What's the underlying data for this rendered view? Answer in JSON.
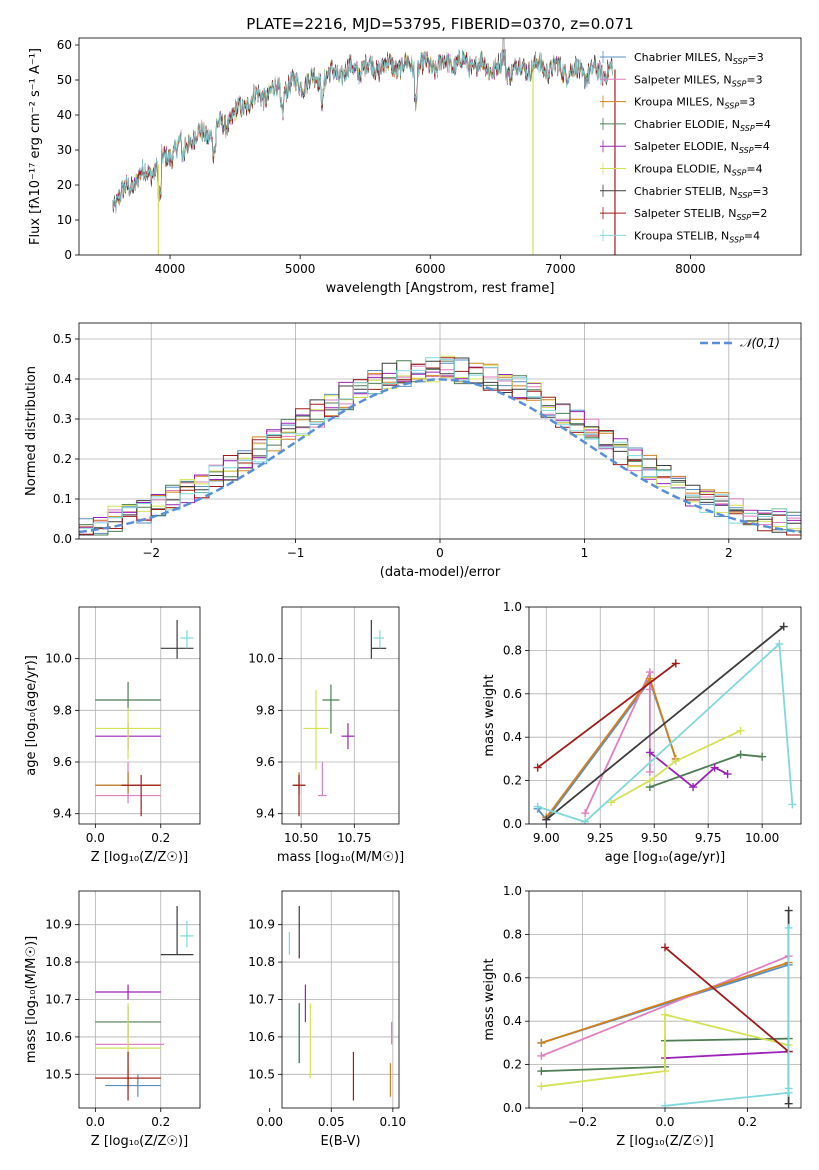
{
  "figure_title": "PLATE=2216, MJD=53795, FIBERID=0370, z=0.071",
  "models": [
    {
      "name": "Chabrier MILES",
      "nssp": "3",
      "color": "#5a8fbf"
    },
    {
      "name": "Salpeter MILES",
      "nssp": "3",
      "color": "#e07fbf"
    },
    {
      "name": "Kroupa MILES",
      "nssp": "3",
      "color": "#d2801e"
    },
    {
      "name": "Chabrier ELODIE",
      "nssp": "4",
      "color": "#4e7d55"
    },
    {
      "name": "Salpeter ELODIE",
      "nssp": "4",
      "color": "#9a22b8"
    },
    {
      "name": "Kroupa ELODIE",
      "nssp": "4",
      "color": "#d4e157"
    },
    {
      "name": "Chabrier STELIB",
      "nssp": "3",
      "color": "#3c3c3c"
    },
    {
      "name": "Salpeter STELIB",
      "nssp": "2",
      "color": "#a01c1c"
    },
    {
      "name": "Kroupa STELIB",
      "nssp": "4",
      "color": "#80d8dc"
    }
  ],
  "chart_data": [
    {
      "id": "spectrum",
      "type": "line",
      "xlabel": "wavelength [Angstrom, rest frame]",
      "ylabel": "Flux [fλ10⁻¹⁷ erg cm⁻² s⁻¹ A⁻¹]",
      "xlim": [
        3300,
        8850
      ],
      "ylim": [
        0,
        62
      ],
      "xticks": [
        4000,
        5000,
        6000,
        7000,
        8000
      ],
      "yticks": [
        0,
        10,
        20,
        30,
        40,
        50,
        60
      ],
      "legend_suffix": "N",
      "legend_sub": "SSP",
      "legend_placement": "upper-right",
      "continuum": {
        "x": [
          3560,
          3650,
          3750,
          3850,
          3950,
          4000,
          4100,
          4200,
          4300,
          4400,
          4500,
          4600,
          4800,
          5000,
          5200,
          5400,
          5600,
          5800,
          6000,
          6200,
          6400,
          6600,
          6800,
          7000,
          7200,
          7400
        ],
        "y": [
          15,
          18,
          22,
          24,
          27,
          29,
          32,
          34,
          35,
          37,
          40,
          44,
          47,
          49,
          51,
          53,
          54,
          54,
          54,
          55,
          54,
          53,
          54,
          53,
          52,
          53
        ]
      },
      "notches": [
        [
          3920,
          10
        ],
        [
          4100,
          4
        ],
        [
          4340,
          6
        ],
        [
          4860,
          5
        ],
        [
          5170,
          5
        ],
        [
          5890,
          8
        ],
        [
          6563,
          -3
        ]
      ],
      "dropouts": [
        {
          "x": 3910,
          "model": 5
        },
        {
          "x": 6790,
          "model": 5
        },
        {
          "x": 7420,
          "model": 7
        }
      ],
      "grid": false
    },
    {
      "id": "residuals",
      "type": "histogram",
      "xlabel": "(data-model)/error",
      "ylabel": "Normed distribution",
      "xlim": [
        -2.5,
        2.5
      ],
      "ylim": [
        0,
        0.54
      ],
      "xticks": [
        -2,
        -1,
        0,
        1,
        2
      ],
      "yticks": [
        0.0,
        0.1,
        0.2,
        0.3,
        0.4,
        0.5
      ],
      "bin_width": 0.1,
      "reference_label": "𝒩(0,1)",
      "reference_color": "#5a8fd6",
      "grid": true
    },
    {
      "id": "age-vs-Z",
      "type": "errorbar",
      "xlabel": "Z [log₁₀(Z/Z☉)]",
      "ylabel": "age  [log₁₀(age/yr)]",
      "xlim": [
        -0.05,
        0.32
      ],
      "ylim": [
        9.36,
        10.2
      ],
      "xticks": [
        0.0,
        0.2
      ],
      "yticks": [
        9.4,
        9.6,
        9.8,
        10.0
      ],
      "grid": true,
      "points": [
        {
          "m": 0,
          "x": 0.1,
          "y": 9.51,
          "ex": [
            0.1,
            0.1
          ],
          "ey": [
            0.05,
            0.05
          ]
        },
        {
          "m": 1,
          "x": 0.1,
          "y": 9.47,
          "ex": [
            0.1,
            0.1
          ],
          "ey": [
            0.03,
            0.13
          ]
        },
        {
          "m": 2,
          "x": 0.1,
          "y": 9.51,
          "ex": [
            0.1,
            0.1
          ],
          "ey": [
            0.03,
            0.05
          ]
        },
        {
          "m": 3,
          "x": 0.1,
          "y": 9.84,
          "ex": [
            0.1,
            0.1
          ],
          "ey": [
            0.04,
            0.07
          ]
        },
        {
          "m": 4,
          "x": 0.1,
          "y": 9.7,
          "ex": [
            0.1,
            0.1
          ],
          "ey": [
            0.05,
            0.05
          ]
        },
        {
          "m": 5,
          "x": 0.1,
          "y": 9.73,
          "ex": [
            0.1,
            0.1
          ],
          "ey": [
            0.12,
            0.08
          ]
        },
        {
          "m": 6,
          "x": 0.25,
          "y": 10.04,
          "ex": [
            0.05,
            0.05
          ],
          "ey": [
            0.04,
            0.11
          ]
        },
        {
          "m": 7,
          "x": 0.14,
          "y": 9.51,
          "ex": [
            0.06,
            0.06
          ],
          "ey": [
            0.12,
            0.04
          ]
        },
        {
          "m": 8,
          "x": 0.28,
          "y": 10.08,
          "ex": [
            0.02,
            0.02
          ],
          "ey": [
            0.04,
            0.03
          ]
        }
      ]
    },
    {
      "id": "age-vs-mass",
      "type": "errorbar",
      "xlabel": "mass [log₁₀(M/M☉)]",
      "ylabel": "",
      "xlim": [
        10.41,
        10.96
      ],
      "ylim": [
        9.36,
        10.2
      ],
      "xticks": [
        10.5,
        10.75
      ],
      "yticks": [
        9.4,
        9.6,
        9.8,
        10.0
      ],
      "grid": true,
      "points": [
        {
          "m": 0,
          "x": 10.49,
          "y": 9.51,
          "ex": [
            0.03,
            0.03
          ],
          "ey": [
            0.04,
            0.05
          ]
        },
        {
          "m": 1,
          "x": 10.6,
          "y": 9.47,
          "ex": [
            0.02,
            0.02
          ],
          "ey": [
            0.0,
            0.13
          ]
        },
        {
          "m": 2,
          "x": 10.49,
          "y": 9.51,
          "ex": [
            0.03,
            0.03
          ],
          "ey": [
            0.03,
            0.05
          ]
        },
        {
          "m": 3,
          "x": 10.64,
          "y": 9.84,
          "ex": [
            0.04,
            0.04
          ],
          "ey": [
            0.13,
            0.06
          ]
        },
        {
          "m": 4,
          "x": 10.72,
          "y": 9.7,
          "ex": [
            0.03,
            0.03
          ],
          "ey": [
            0.05,
            0.05
          ]
        },
        {
          "m": 5,
          "x": 10.57,
          "y": 9.73,
          "ex": [
            0.06,
            0.06
          ],
          "ey": [
            0.16,
            0.15
          ]
        },
        {
          "m": 6,
          "x": 10.83,
          "y": 10.04,
          "ex": [
            0.0,
            0.07
          ],
          "ey": [
            0.04,
            0.11
          ]
        },
        {
          "m": 7,
          "x": 10.49,
          "y": 9.51,
          "ex": [
            0.03,
            0.03
          ],
          "ey": [
            0.12,
            0.04
          ]
        },
        {
          "m": 8,
          "x": 10.87,
          "y": 10.08,
          "ex": [
            0.03,
            0.02
          ],
          "ey": [
            0.04,
            0.03
          ]
        }
      ]
    },
    {
      "id": "weight-vs-age",
      "type": "line",
      "xlabel": "age  [log₁₀(age/yr)]",
      "ylabel": "mass weight",
      "xlim": [
        8.92,
        10.18
      ],
      "ylim": [
        0,
        1
      ],
      "xticks": [
        9.0,
        9.25,
        9.5,
        9.75,
        10.0
      ],
      "yticks": [
        0.0,
        0.2,
        0.4,
        0.6,
        0.8,
        1.0
      ],
      "grid": true,
      "series": [
        {
          "m": 0,
          "x": [
            8.96,
            9.0,
            9.48,
            9.6
          ],
          "y": [
            0.07,
            0.02,
            0.66,
            0.3
          ]
        },
        {
          "m": 1,
          "x": [
            9.18,
            9.48,
            9.48,
            9.48
          ],
          "y": [
            0.05,
            0.7,
            0.62,
            0.24
          ]
        },
        {
          "m": 2,
          "x": [
            9.0,
            9.48,
            9.6
          ],
          "y": [
            0.03,
            0.67,
            0.3
          ]
        },
        {
          "m": 3,
          "x": [
            9.48,
            9.9,
            10.0
          ],
          "y": [
            0.17,
            0.32,
            0.31
          ]
        },
        {
          "m": 4,
          "x": [
            9.48,
            9.68,
            9.78,
            9.84
          ],
          "y": [
            0.33,
            0.17,
            0.26,
            0.23
          ]
        },
        {
          "m": 5,
          "x": [
            9.3,
            9.48,
            9.6,
            9.9
          ],
          "y": [
            0.1,
            0.2,
            0.29,
            0.43
          ]
        },
        {
          "m": 6,
          "x": [
            9.0,
            10.1
          ],
          "y": [
            0.02,
            0.91
          ]
        },
        {
          "m": 7,
          "x": [
            8.96,
            9.6
          ],
          "y": [
            0.26,
            0.74
          ]
        },
        {
          "m": 8,
          "x": [
            8.96,
            9.18,
            10.08,
            10.14
          ],
          "y": [
            0.08,
            0.01,
            0.83,
            0.09
          ]
        }
      ]
    },
    {
      "id": "mass-vs-Z",
      "type": "errorbar",
      "xlabel": "Z [log₁₀(Z/Z☉)]",
      "ylabel": "mass [log₁₀(M/M☉)]",
      "xlim": [
        -0.05,
        0.32
      ],
      "ylim": [
        10.41,
        10.99
      ],
      "xticks": [
        0.0,
        0.2
      ],
      "yticks": [
        10.5,
        10.6,
        10.7,
        10.8,
        10.9
      ],
      "grid": true,
      "points": [
        {
          "m": 0,
          "x": 0.13,
          "y": 10.47,
          "ex": [
            0.1,
            0.07
          ],
          "ey": [
            0.03,
            0.03
          ]
        },
        {
          "m": 1,
          "x": 0.1,
          "y": 10.58,
          "ex": [
            0.1,
            0.11
          ],
          "ey": [
            0.02,
            0.05
          ]
        },
        {
          "m": 2,
          "x": 0.1,
          "y": 10.49,
          "ex": [
            0.1,
            0.1
          ],
          "ey": [
            0.03,
            0.03
          ]
        },
        {
          "m": 3,
          "x": 0.1,
          "y": 10.64,
          "ex": [
            0.1,
            0.1
          ],
          "ey": [
            0.04,
            0.04
          ]
        },
        {
          "m": 4,
          "x": 0.1,
          "y": 10.72,
          "ex": [
            0.1,
            0.1
          ],
          "ey": [
            0.02,
            0.02
          ]
        },
        {
          "m": 5,
          "x": 0.1,
          "y": 10.57,
          "ex": [
            0.1,
            0.1
          ],
          "ey": [
            0.09,
            0.12
          ]
        },
        {
          "m": 6,
          "x": 0.25,
          "y": 10.82,
          "ex": [
            0.05,
            0.05
          ],
          "ey": [
            0.0,
            0.13
          ]
        },
        {
          "m": 7,
          "x": 0.1,
          "y": 10.49,
          "ex": [
            0.1,
            0.1
          ],
          "ey": [
            0.06,
            0.07
          ]
        },
        {
          "m": 8,
          "x": 0.28,
          "y": 10.87,
          "ex": [
            0.02,
            0.02
          ],
          "ey": [
            0.03,
            0.04
          ]
        }
      ]
    },
    {
      "id": "mass-vs-ebv",
      "type": "errorbar",
      "xlabel": "E(B-V)",
      "ylabel": "",
      "xlim": [
        0.01,
        0.105
      ],
      "ylim": [
        10.41,
        10.99
      ],
      "xticks": [
        0.0,
        0.05,
        0.1
      ],
      "yticks": [
        10.5,
        10.6,
        10.7,
        10.8,
        10.9
      ],
      "grid": true,
      "points": [
        {
          "m": 0,
          "x": 0.024,
          "y": 10.61,
          "ex": [
            0,
            0
          ],
          "ey": [
            0.08,
            0.08
          ]
        },
        {
          "m": 1,
          "x": 0.099,
          "y": 10.61,
          "ex": [
            0,
            0
          ],
          "ey": [
            0.03,
            0.03
          ]
        },
        {
          "m": 2,
          "x": 0.098,
          "y": 10.48,
          "ex": [
            0,
            0
          ],
          "ey": [
            0.04,
            0.05
          ]
        },
        {
          "m": 3,
          "x": 0.024,
          "y": 10.61,
          "ex": [
            0,
            0
          ],
          "ey": [
            0.08,
            0.08
          ]
        },
        {
          "m": 4,
          "x": 0.029,
          "y": 10.69,
          "ex": [
            0,
            0
          ],
          "ey": [
            0.05,
            0.05
          ]
        },
        {
          "m": 5,
          "x": 0.033,
          "y": 10.59,
          "ex": [
            0,
            0
          ],
          "ey": [
            0.1,
            0.1
          ]
        },
        {
          "m": 6,
          "x": 0.024,
          "y": 10.88,
          "ex": [
            0,
            0
          ],
          "ey": [
            0.07,
            0.07
          ]
        },
        {
          "m": 7,
          "x": 0.068,
          "y": 10.5,
          "ex": [
            0,
            0
          ],
          "ey": [
            0.07,
            0.06
          ]
        },
        {
          "m": 8,
          "x": 0.016,
          "y": 10.85,
          "ex": [
            0,
            0
          ],
          "ey": [
            0.03,
            0.03
          ]
        }
      ]
    },
    {
      "id": "weight-vs-Z",
      "type": "line",
      "xlabel": "Z [log₁₀(Z/Z☉)]",
      "ylabel": "mass weight",
      "xlim": [
        -0.33,
        0.33
      ],
      "ylim": [
        0,
        1
      ],
      "xticks": [
        -0.2,
        0.0,
        0.2
      ],
      "yticks": [
        0.0,
        0.2,
        0.4,
        0.6,
        0.8,
        1.0
      ],
      "grid": true,
      "series": [
        {
          "m": 0,
          "x": [
            -0.3,
            0.3
          ],
          "y": [
            0.3,
            0.66
          ]
        },
        {
          "m": 1,
          "x": [
            -0.3,
            0.3
          ],
          "y": [
            0.24,
            0.7
          ]
        },
        {
          "m": 2,
          "x": [
            -0.3,
            0.3
          ],
          "y": [
            0.3,
            0.67
          ]
        },
        {
          "m": 3,
          "x": [
            -0.3,
            0.0,
            0.0,
            0.3
          ],
          "y": [
            0.17,
            0.19,
            0.31,
            0.32
          ]
        },
        {
          "m": 4,
          "x": [
            0.0,
            0.3
          ],
          "y": [
            0.23,
            0.26
          ]
        },
        {
          "m": 5,
          "x": [
            -0.3,
            0.0,
            0.0,
            0.3
          ],
          "y": [
            0.1,
            0.17,
            0.43,
            0.29
          ]
        },
        {
          "m": 6,
          "x": [
            0.3,
            0.3
          ],
          "y": [
            0.91,
            0.02
          ]
        },
        {
          "m": 7,
          "x": [
            0.0,
            0.3
          ],
          "y": [
            0.74,
            0.26
          ]
        },
        {
          "m": 8,
          "x": [
            0.0,
            0.3,
            0.3,
            0.3
          ],
          "y": [
            0.01,
            0.07,
            0.83,
            0.09
          ]
        }
      ]
    }
  ]
}
